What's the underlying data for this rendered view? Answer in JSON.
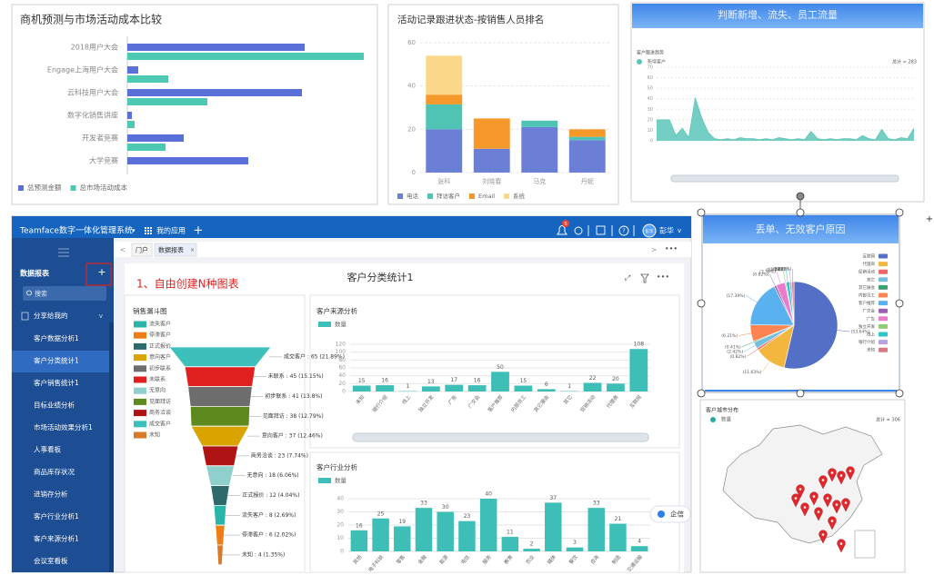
{
  "app": {
    "header": {
      "title": "Teamface数字一体化管理系统",
      "apps": "我的应用",
      "badge": "5",
      "user": "彭华"
    },
    "sidebar": {
      "title": "数据报表",
      "search": "搜索",
      "group": "分享给我的",
      "items": [
        "客户数据分析1",
        "客户分类统计1",
        "客户销售统计1",
        "目标业绩分析",
        "市场活动效果分析1",
        "人事看板",
        "商品库存状况",
        "进销存分析",
        "客户行业分析1",
        "客户来源分析1",
        "会议室看板"
      ]
    },
    "tabs": [
      "门户",
      "数据报表"
    ],
    "annotation": "1、自由创建N种图表",
    "page_title": "客户分类统计1",
    "chat": "企信"
  },
  "chart_data": [
    {
      "type": "bar",
      "horizontal": true,
      "title": "商机预测与市场活动成本比较",
      "categories": [
        "2018用户大会",
        "Engage上海用户大会",
        "云科技用户大会",
        "数字化销售讲座",
        "开发者竞赛",
        "大学竞赛"
      ],
      "series": [
        {
          "name": "总预测金额",
          "color": "#5b6fd8",
          "values": [
            195,
            12,
            192,
            5,
            62,
            133
          ]
        },
        {
          "name": "总市场活动成本",
          "color": "#4cc9b0",
          "values": [
            260,
            45,
            88,
            8,
            42,
            0
          ]
        }
      ],
      "xlim": [
        0,
        260
      ]
    },
    {
      "type": "bar",
      "stacked": true,
      "title": "活动记录跟进状态-按销售人员排名",
      "categories": [
        "张科",
        "刘晓春",
        "马克",
        "丹妮"
      ],
      "series": [
        {
          "name": "电话",
          "color": "#6b7fd7",
          "values": [
            20,
            11,
            21,
            15
          ]
        },
        {
          "name": "拜访客户",
          "color": "#4fc3b4",
          "values": [
            11.5,
            0,
            3,
            1.5
          ]
        },
        {
          "name": "Email",
          "color": "#f59a2a",
          "values": [
            4.5,
            14,
            0,
            3.5
          ]
        },
        {
          "name": "系统",
          "color": "#fcd98a",
          "values": [
            18,
            0,
            0,
            0
          ]
        }
      ],
      "ylim": [
        0,
        60
      ],
      "yticks": [
        0,
        20,
        40,
        60
      ],
      "grid": true
    },
    {
      "type": "area",
      "title": "判断新增、流失、员工流量",
      "subtitle": "客户跟进趋势",
      "total": "总计 ≈ 283",
      "series": [
        {
          "name": "新增客户",
          "color": "#5cc6b8",
          "values": [
            20,
            20,
            20,
            5,
            12,
            3,
            41,
            22,
            8,
            2,
            1,
            2,
            1,
            3,
            2,
            2,
            1,
            2,
            1,
            3,
            2,
            1,
            2,
            1,
            9,
            2,
            1,
            2,
            1,
            2,
            2,
            1,
            5,
            2,
            1,
            11,
            2,
            1,
            3,
            2,
            12
          ]
        }
      ],
      "ylim": [
        0,
        70
      ],
      "yticks": [
        0,
        10,
        20,
        30,
        40,
        50,
        60,
        70
      ],
      "grid": true
    },
    {
      "type": "funnel",
      "title": "销售漏斗图",
      "categories": [
        "成交客户",
        "未联系",
        "初步联系",
        "见面拜访",
        "意向客户",
        "商务洽谈",
        "无意向",
        "正式报价",
        "流失客户",
        "停滞客户",
        "未知"
      ],
      "values": [
        65,
        45,
        41,
        38,
        37,
        23,
        18,
        12,
        8,
        6,
        4
      ],
      "value_labels": [
        "成交客户 : 65 (21.89%)",
        "未联系 : 45 (15.15%)",
        "初步联系 : 41 (13.8%)",
        "见面拜访 : 38 (12.79%)",
        "意向客户 : 37 (12.46%)",
        "商务洽谈 : 23 (7.74%)",
        "无意向 : 18 (6.06%)",
        "正式报价 : 12 (4.04%)",
        "流失客户 : 8 (2.69%)",
        "停滞客户 : 6 (2.02%)",
        "未知 : 4 (1.35%)"
      ],
      "colors": [
        "#3dbfbb",
        "#e01f1f",
        "#6d6d6d",
        "#5c8a1e",
        "#d9a400",
        "#b01313",
        "#8fd0cd",
        "#2d6b6b",
        "#29b5a8",
        "#f07d13",
        "#d97a2a"
      ],
      "legend": [
        "流失客户",
        "停滞客户",
        "正式报价",
        "意向客户",
        "初步联系",
        "未联系",
        "无意向",
        "见面拜访",
        "商务洽谈",
        "成交客户",
        "未知"
      ]
    },
    {
      "type": "bar",
      "title": "客户来源分析",
      "categories": [
        "未知",
        "银行介绍",
        "线上",
        "独立开发",
        "广告",
        "广交会",
        "客户推荐",
        "内部员工",
        "其它展会",
        "其它",
        "促销活动",
        "代理商",
        "互联网"
      ],
      "series": [
        {
          "name": "数量",
          "color": "#3dbfb8",
          "values": [
            15,
            16,
            1,
            13,
            17,
            16,
            50,
            15,
            6,
            1,
            22,
            20,
            108
          ]
        }
      ],
      "ylim": [
        0,
        120
      ],
      "yticks": [
        0,
        20,
        40,
        60,
        80,
        100,
        120
      ],
      "grid": true
    },
    {
      "type": "bar",
      "title": "客户行业分析",
      "categories": [
        "其他",
        "电子科技",
        "零售",
        "金融",
        "能源",
        "电信",
        "服务",
        "教育",
        "农业",
        "媒体",
        "餐饮",
        "咨询",
        "制造",
        "交通运输"
      ],
      "series": [
        {
          "name": "数量",
          "color": "#3dbfb8",
          "values": [
            16,
            25,
            19,
            33,
            30,
            23,
            40,
            11,
            2,
            37,
            3,
            33,
            21,
            4
          ]
        }
      ],
      "ylim": [
        0,
        40
      ],
      "yticks": [
        0,
        10,
        20,
        30,
        40
      ],
      "grid": true
    },
    {
      "type": "pie",
      "title": "丢单、无效客户原因",
      "categories": [
        "互联网",
        "代理商",
        "促销活动",
        "其它",
        "其它展会",
        "内部员工",
        "客户推荐",
        "广交会",
        "广告",
        "独立开发",
        "线上",
        "银行介绍",
        "未知"
      ],
      "values": [
        53.64,
        11.63,
        0.82,
        2.42,
        0.41,
        6.21,
        17.39,
        0.82,
        3.38,
        0.41,
        1.23,
        0.82,
        0.82
      ],
      "value_labels": [
        "(53.64%)",
        "(11.63%)",
        "(0.82%)",
        "(2.42%)",
        "(0.41%)",
        "(6.21%)",
        "(17.39%)",
        "(0.82%)",
        "(3.38%)",
        "(0.41%)",
        "(1.23%)",
        "(0.82%)",
        "(0.82%)"
      ],
      "colors": [
        "#5470c6",
        "#f3b63f",
        "#ee6666",
        "#73c0de",
        "#3ba272",
        "#fc8452",
        "#5ab1ef",
        "#9a60b4",
        "#ea7ccc",
        "#91cc75",
        "#2ec7c9",
        "#b6a2de",
        "#d87a80"
      ]
    },
    {
      "type": "map",
      "title": "客户城市分布",
      "total": "总计 = 306",
      "series": [
        {
          "name": "数量",
          "color": "#2aa8a0"
        }
      ]
    }
  ]
}
